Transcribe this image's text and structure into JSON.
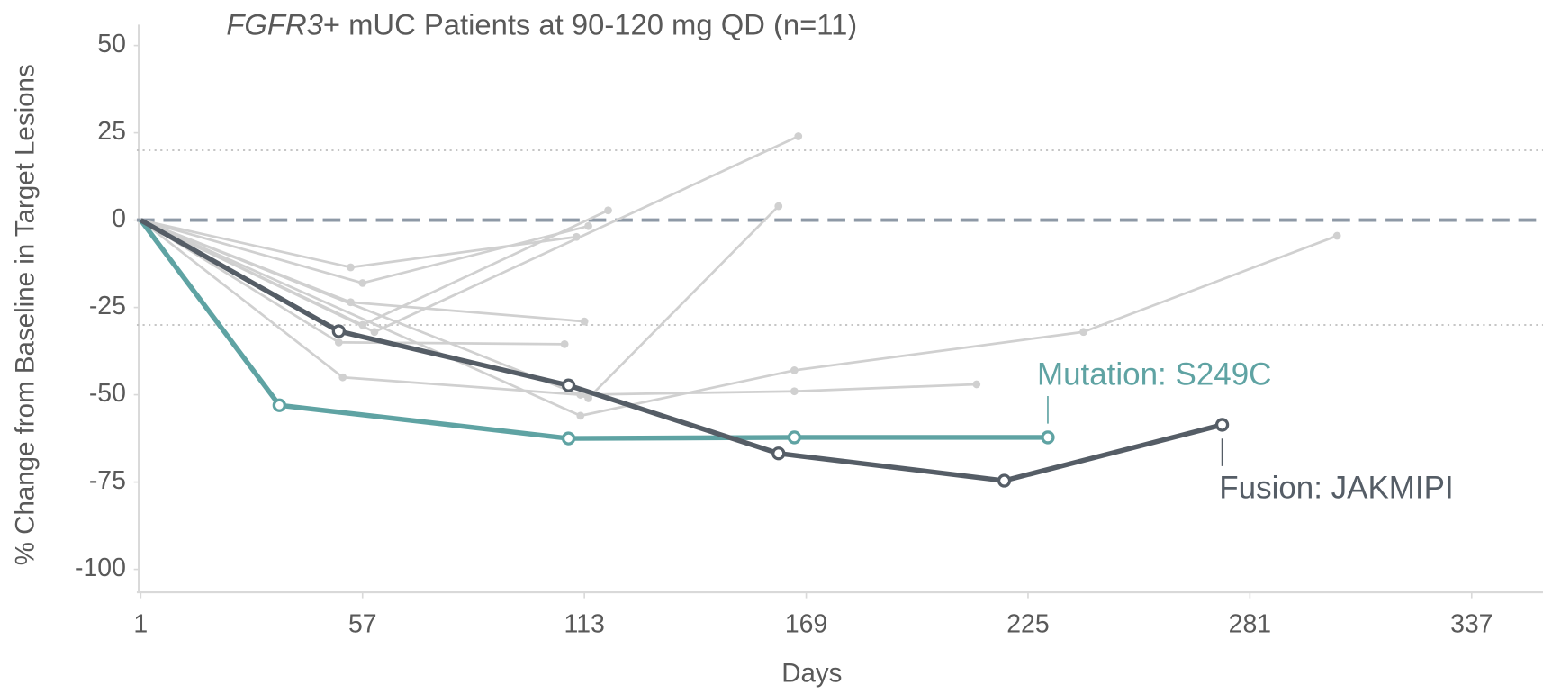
{
  "chart_data": {
    "type": "line",
    "title_parts": [
      "FGFR3",
      "+ mUC Patients at 90-120 mg QD (n=11)"
    ],
    "xlabel": "Days",
    "ylabel": "% Change from Baseline in Target Lesions",
    "xlim": [
      0,
      355
    ],
    "ylim": [
      -106,
      56
    ],
    "xticks": [
      1,
      57,
      113,
      169,
      225,
      281,
      337
    ],
    "yticks": [
      50,
      25,
      0,
      -25,
      -50,
      -75,
      -100
    ],
    "dashed_lines": [
      0
    ],
    "dotted_lines": [
      20,
      -30
    ],
    "series": [
      {
        "color": "#d0d0d0",
        "x": [
          1,
          54,
          111
        ],
        "values": [
          0,
          -13.5,
          -4.8
        ]
      },
      {
        "color": "#d0d0d0",
        "x": [
          1,
          57,
          114
        ],
        "values": [
          0,
          -18,
          -1.7
        ]
      },
      {
        "color": "#d0d0d0",
        "x": [
          1,
          54,
          113
        ],
        "values": [
          0,
          -23.5,
          -29
        ]
      },
      {
        "color": "#d0d0d0",
        "x": [
          1,
          57,
          119
        ],
        "values": [
          0,
          -30,
          2.8
        ]
      },
      {
        "color": "#d0d0d0",
        "x": [
          1,
          60,
          167
        ],
        "values": [
          0,
          -32,
          24
        ]
      },
      {
        "color": "#d0d0d0",
        "x": [
          1,
          51,
          108
        ],
        "values": [
          0,
          -35,
          -35.5
        ]
      },
      {
        "color": "#d0d0d0",
        "x": [
          1,
          52,
          112,
          166,
          212
        ],
        "values": [
          0,
          -45,
          -50,
          -49,
          -47
        ]
      },
      {
        "color": "#d0d0d0",
        "x": [
          1,
          112,
          166,
          239,
          303
        ],
        "values": [
          0,
          -56,
          -43,
          -32,
          -4.5
        ]
      },
      {
        "color": "#d0d0d0",
        "x": [
          1,
          114,
          162
        ],
        "values": [
          0,
          -51,
          4
        ]
      },
      {
        "name": "Mutation: S249C",
        "color": "#5fa3a3",
        "x": [
          1,
          36,
          109,
          166,
          230
        ],
        "values": [
          0,
          -53,
          -62.5,
          -62.2,
          -62.2
        ]
      },
      {
        "name": "Fusion: JAKMIPI",
        "color": "#555d66",
        "x": [
          1,
          51,
          109,
          162,
          219,
          274
        ],
        "values": [
          0,
          -31.8,
          -47.3,
          -66.8,
          -74.6,
          -58.6
        ]
      }
    ]
  }
}
